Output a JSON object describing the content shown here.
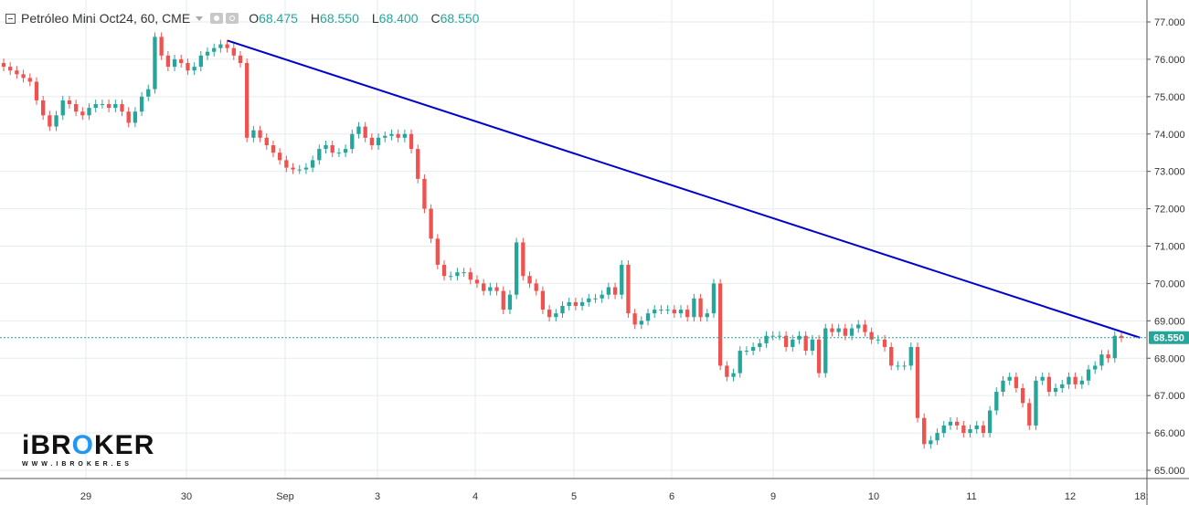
{
  "header": {
    "title": "Petróleo Mini Oct24, 60, CME",
    "open_label": "O",
    "open_value": "68.475",
    "high_label": "H",
    "high_value": "68.550",
    "low_label": "L",
    "low_value": "68.400",
    "close_label": "C",
    "close_value": "68.550"
  },
  "logo": {
    "word_pre": "iBR",
    "word_accent": "O",
    "word_post": "KER",
    "url": "WWW.IBROKER.ES"
  },
  "colors": {
    "up": "#26a69a",
    "down": "#ef5350",
    "trendline": "#0000cc",
    "price_marker": "#26a69a",
    "grid": "#e6ebf0"
  },
  "chart_data": {
    "type": "candlestick",
    "title": "Petróleo Mini Oct24, 60, CME",
    "ylim": [
      64.8,
      77.4
    ],
    "y_ticks": [
      "77.000",
      "76.000",
      "75.000",
      "74.000",
      "73.000",
      "72.000",
      "71.000",
      "70.000",
      "69.000",
      "68.000",
      "67.000",
      "66.000",
      "65.000"
    ],
    "x_ticks": [
      "29",
      "30",
      "Sep",
      "3",
      "4",
      "5",
      "6",
      "9",
      "10",
      "11",
      "12",
      "18:"
    ],
    "last_price": "68.550",
    "trendline": {
      "from": [
        0.1904,
        76.5
      ],
      "to": [
        0.958,
        68.55
      ]
    },
    "closes": [
      75.8,
      75.7,
      75.6,
      75.5,
      75.4,
      74.9,
      74.5,
      74.2,
      74.5,
      74.9,
      74.8,
      74.6,
      74.5,
      74.7,
      74.8,
      74.8,
      74.7,
      74.8,
      74.6,
      74.3,
      74.6,
      75.0,
      75.2,
      76.6,
      76.1,
      75.8,
      76.0,
      75.9,
      75.7,
      75.8,
      76.1,
      76.2,
      76.3,
      76.4,
      76.3,
      76.1,
      75.9,
      73.9,
      74.1,
      73.9,
      73.7,
      73.5,
      73.3,
      73.1,
      73.05,
      73.05,
      73.1,
      73.3,
      73.6,
      73.7,
      73.5,
      73.5,
      73.6,
      74.0,
      74.2,
      73.9,
      73.7,
      73.9,
      73.95,
      74.0,
      73.9,
      74.0,
      73.6,
      72.8,
      72.0,
      71.2,
      70.5,
      70.2,
      70.2,
      70.3,
      70.3,
      70.1,
      70.0,
      69.8,
      69.9,
      69.8,
      69.3,
      69.7,
      71.1,
      70.2,
      70.0,
      69.8,
      69.3,
      69.1,
      69.2,
      69.4,
      69.5,
      69.4,
      69.5,
      69.6,
      69.6,
      69.7,
      69.9,
      69.7,
      70.5,
      69.2,
      68.9,
      69.0,
      69.2,
      69.3,
      69.3,
      69.3,
      69.2,
      69.3,
      69.1,
      69.6,
      69.1,
      69.2,
      70.0,
      67.8,
      67.5,
      67.6,
      68.2,
      68.2,
      68.3,
      68.4,
      68.6,
      68.6,
      68.6,
      68.3,
      68.5,
      68.6,
      68.2,
      68.5,
      67.6,
      68.8,
      68.7,
      68.8,
      68.6,
      68.8,
      68.9,
      68.7,
      68.5,
      68.5,
      68.3,
      67.8,
      67.8,
      67.8,
      68.3,
      66.4,
      65.7,
      65.8,
      66.0,
      66.2,
      66.3,
      66.2,
      66.0,
      66.1,
      66.2,
      66.0,
      66.6,
      67.1,
      67.4,
      67.5,
      67.2,
      66.8,
      66.2,
      67.4,
      67.5,
      67.1,
      67.2,
      67.3,
      67.5,
      67.3,
      67.4,
      67.7,
      67.8,
      68.1,
      68.0,
      68.6,
      68.55
    ]
  }
}
